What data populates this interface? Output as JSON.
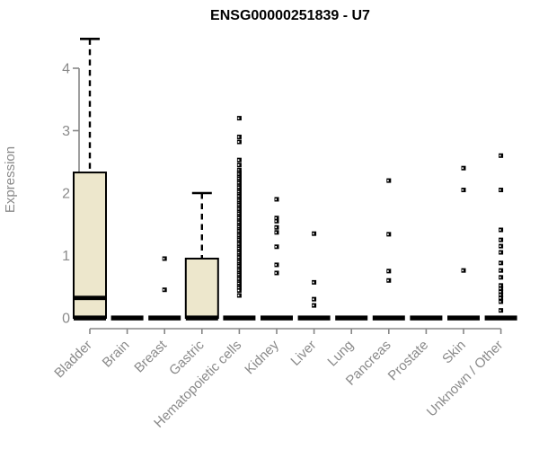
{
  "page": {
    "background": "#ffffff"
  },
  "chart_data": {
    "type": "box",
    "title": "ENSG00000251839 - U7",
    "ylabel": "Expression",
    "xlabel": "",
    "ylim": [
      0,
      4.6
    ],
    "yticks": [
      0,
      1,
      2,
      3,
      4
    ],
    "grid": false,
    "legend": false,
    "colors": {
      "box_fill": "#EDE7CC",
      "box_stroke": "#000000",
      "median": "#000000",
      "zero_bar": "#000000",
      "point": "#000000",
      "axis": "#878787",
      "text_gray": "#8a8a8a",
      "title": "#000000"
    },
    "categories": [
      "Bladder",
      "Brain",
      "Breast",
      "Gastric",
      "Hematopoietic cells",
      "Kidney",
      "Liver",
      "Lung",
      "Pancreas",
      "Prostate",
      "Skin",
      "Unknown / Other"
    ],
    "boxes": [
      {
        "category": "Bladder",
        "q1": 0,
        "median": 0.32,
        "q3": 2.33,
        "whisker_low": 0,
        "whisker_high": 4.47,
        "outliers": []
      },
      {
        "category": "Brain",
        "q1": 0,
        "median": 0,
        "q3": 0,
        "whisker_low": 0,
        "whisker_high": 0,
        "outliers": []
      },
      {
        "category": "Breast",
        "q1": 0,
        "median": 0,
        "q3": 0,
        "whisker_low": 0,
        "whisker_high": 0,
        "outliers": [
          0.95,
          0.45
        ]
      },
      {
        "category": "Gastric",
        "q1": 0,
        "median": 0,
        "q3": 0.95,
        "whisker_low": 0,
        "whisker_high": 2.0,
        "outliers": []
      },
      {
        "category": "Hematopoietic cells",
        "q1": 0,
        "median": 0,
        "q3": 0,
        "whisker_low": 0,
        "whisker_high": 0,
        "outliers": [
          3.2,
          2.9,
          2.82,
          2.53,
          2.45,
          2.37,
          2.33,
          2.3,
          2.26,
          2.23,
          2.19,
          2.16,
          2.12,
          2.09,
          2.05,
          2.02,
          1.98,
          1.95,
          1.91,
          1.88,
          1.84,
          1.81,
          1.77,
          1.74,
          1.7,
          1.67,
          1.63,
          1.6,
          1.56,
          1.53,
          1.49,
          1.46,
          1.42,
          1.39,
          1.35,
          1.32,
          1.28,
          1.25,
          1.21,
          1.18,
          1.14,
          1.11,
          1.07,
          1.04,
          1.0,
          0.97,
          0.93,
          0.9,
          0.86,
          0.83,
          0.79,
          0.76,
          0.72,
          0.69,
          0.65,
          0.62,
          0.58,
          0.55,
          0.51,
          0.48,
          0.44,
          0.36
        ]
      },
      {
        "category": "Kidney",
        "q1": 0,
        "median": 0,
        "q3": 0,
        "whisker_low": 0,
        "whisker_high": 0,
        "outliers": [
          1.9,
          1.6,
          1.55,
          1.45,
          1.37,
          1.14,
          0.85,
          0.72
        ]
      },
      {
        "category": "Liver",
        "q1": 0,
        "median": 0,
        "q3": 0,
        "whisker_low": 0,
        "whisker_high": 0,
        "outliers": [
          1.35,
          0.57,
          0.3,
          0.2
        ]
      },
      {
        "category": "Lung",
        "q1": 0,
        "median": 0,
        "q3": 0,
        "whisker_low": 0,
        "whisker_high": 0,
        "outliers": []
      },
      {
        "category": "Pancreas",
        "q1": 0,
        "median": 0,
        "q3": 0,
        "whisker_low": 0,
        "whisker_high": 0,
        "outliers": [
          2.2,
          1.34,
          0.75,
          0.6
        ]
      },
      {
        "category": "Prostate",
        "q1": 0,
        "median": 0,
        "q3": 0,
        "whisker_low": 0,
        "whisker_high": 0,
        "outliers": []
      },
      {
        "category": "Skin",
        "q1": 0,
        "median": 0,
        "q3": 0,
        "whisker_low": 0,
        "whisker_high": 0,
        "outliers": [
          2.4,
          2.05,
          0.76
        ]
      },
      {
        "category": "Unknown / Other",
        "q1": 0,
        "median": 0,
        "q3": 0,
        "whisker_low": 0,
        "whisker_high": 0,
        "outliers": [
          2.6,
          2.05,
          1.41,
          1.25,
          1.15,
          1.05,
          0.88,
          0.76,
          0.65,
          0.52,
          0.47,
          0.42,
          0.37,
          0.32,
          0.26,
          0.12
        ]
      }
    ]
  }
}
